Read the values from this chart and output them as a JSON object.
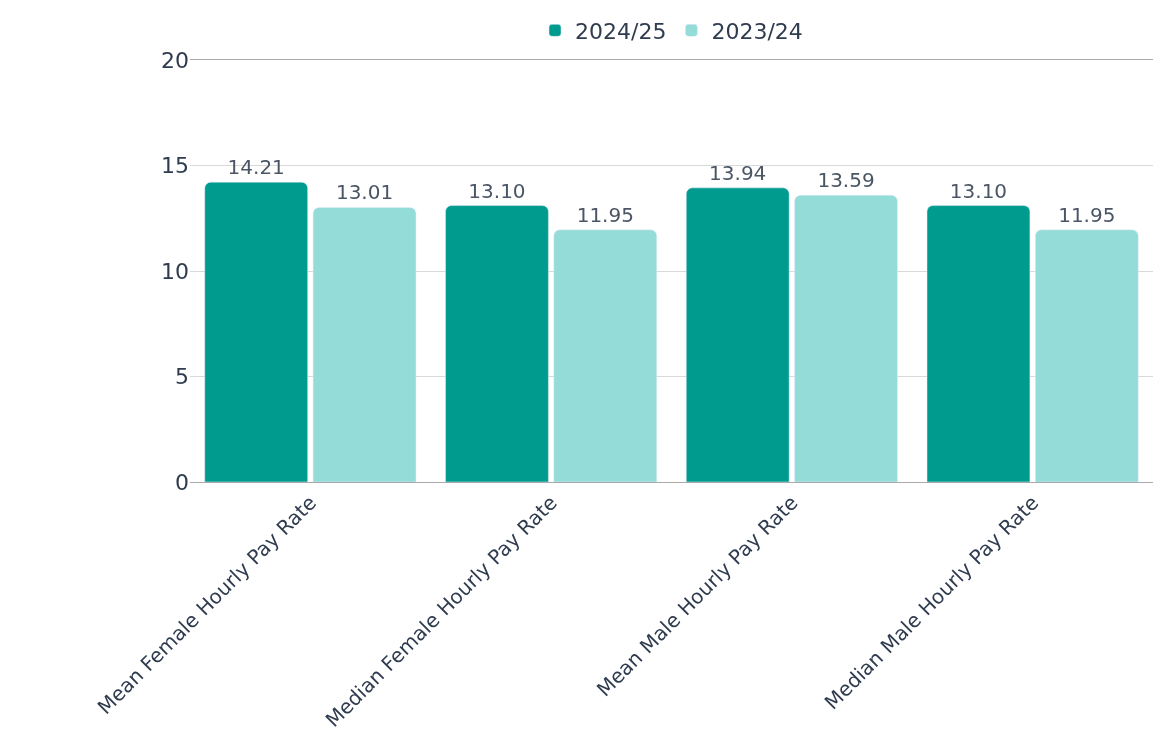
{
  "chart_data": {
    "type": "bar",
    "categories": [
      "Mean Female Hourly Pay Rate",
      "Median Female Hourly Pay Rate",
      "Mean Male Hourly Pay Rate",
      "Median Male Hourly Pay Rate"
    ],
    "series": [
      {
        "name": "2024/25",
        "color": "#009b8f",
        "values": [
          14.21,
          13.1,
          13.94,
          13.1
        ],
        "value_labels": [
          "14.21",
          "13.10",
          "13.94",
          "13.10"
        ]
      },
      {
        "name": "2023/24",
        "color": "#93dcd7",
        "values": [
          13.01,
          11.95,
          13.59,
          11.95
        ],
        "value_labels": [
          "13.01",
          "11.95",
          "13.59",
          "11.95"
        ]
      }
    ],
    "ylim": [
      0,
      20
    ],
    "yticks": [
      0,
      5,
      10,
      15,
      20
    ],
    "grid": "y",
    "legend": "top"
  }
}
